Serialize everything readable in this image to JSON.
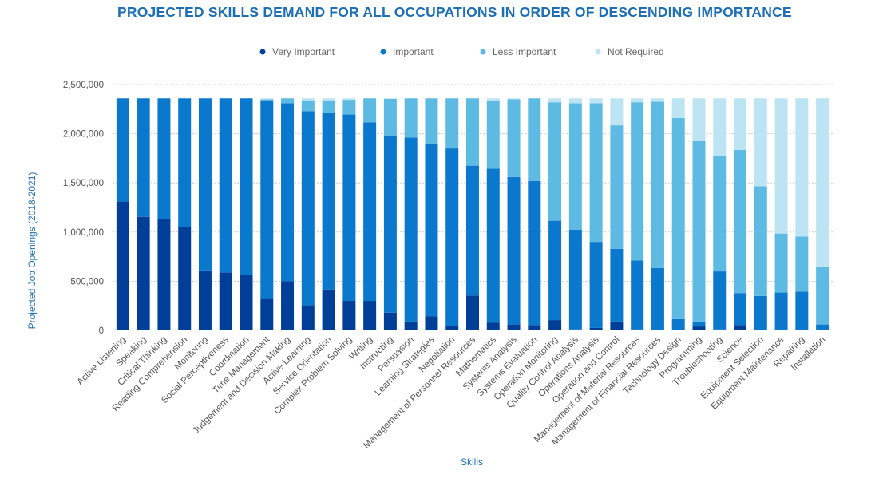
{
  "chart_data": {
    "type": "bar",
    "stacked": true,
    "title": "PROJECTED SKILLS DEMAND FOR ALL OCCUPATIONS IN ORDER OF DESCENDING IMPORTANCE",
    "xlabel": "Skills",
    "ylabel": "Projected Job Openings (2018-2021)",
    "ylim": [
      0,
      2500000
    ],
    "yticks": [
      0,
      500000,
      1000000,
      1500000,
      2000000,
      2500000
    ],
    "ytick_labels": [
      "0",
      "500,000",
      "1,000,000",
      "1,500,000",
      "2,000,000",
      "2,500,000"
    ],
    "grid": true,
    "legend_position": "top",
    "categories": [
      "Active Listening",
      "Speaking",
      "Critical Thinking",
      "Reading Comprehension",
      "Monitoring",
      "Social Perceptiveness",
      "Coordination",
      "Time Management",
      "Judgement and Decision Making",
      "Active Learning",
      "Service Orientation",
      "Complex Problem Solving",
      "Writing",
      "Instructing",
      "Persuasion",
      "Learning Strategies",
      "Negotiation",
      "Management of Personnel Resources",
      "Mathematics",
      "Systems Analysis",
      "Systems Evaluation",
      "Operation Monitoring",
      "Quality Control Analysis",
      "Operations Analysis",
      "Operation and Control",
      "Management of Material Resources",
      "Management of Financial Resources",
      "Technology Design",
      "Programming",
      "Troubleshooting",
      "Science",
      "Equipment Selection",
      "Equipment Maintenance",
      "Repairing",
      "Installation"
    ],
    "series": [
      {
        "name": "Very Important",
        "color": "#003f98",
        "values": [
          1310000,
          1155000,
          1130000,
          1055000,
          610000,
          590000,
          565000,
          320000,
          500000,
          255000,
          415000,
          300000,
          300000,
          180000,
          90000,
          145000,
          45000,
          355000,
          80000,
          60000,
          55000,
          105000,
          10000,
          25000,
          90000,
          10000,
          5000,
          5000,
          40000,
          10000,
          55000,
          5000,
          5000,
          5000,
          5000
        ]
      },
      {
        "name": "Important",
        "color": "#0a78cc",
        "values": [
          1050000,
          1205000,
          1230000,
          1305000,
          1750000,
          1770000,
          1795000,
          2020000,
          1810000,
          1975000,
          1795000,
          1895000,
          1815000,
          1800000,
          1870000,
          1750000,
          1805000,
          1320000,
          1565000,
          1500000,
          1465000,
          1010000,
          1015000,
          875000,
          740000,
          700000,
          630000,
          110000,
          50000,
          590000,
          325000,
          345000,
          380000,
          390000,
          55000
        ]
      },
      {
        "name": "Less Important",
        "color": "#5dbbe3",
        "values": [
          0,
          0,
          0,
          0,
          0,
          0,
          0,
          10000,
          50000,
          110000,
          130000,
          150000,
          245000,
          375000,
          400000,
          465000,
          510000,
          685000,
          690000,
          790000,
          840000,
          1205000,
          1285000,
          1410000,
          1255000,
          1610000,
          1690000,
          2045000,
          1835000,
          1170000,
          1455000,
          1115000,
          600000,
          560000,
          590000
        ]
      },
      {
        "name": "Not Required",
        "color": "#bde4f3",
        "values": [
          0,
          0,
          0,
          0,
          0,
          0,
          0,
          10000,
          0,
          20000,
          20000,
          15000,
          0,
          5000,
          0,
          0,
          0,
          0,
          25000,
          10000,
          0,
          40000,
          50000,
          50000,
          275000,
          40000,
          35000,
          200000,
          435000,
          590000,
          525000,
          895000,
          1375000,
          1405000,
          1710000
        ]
      }
    ]
  }
}
